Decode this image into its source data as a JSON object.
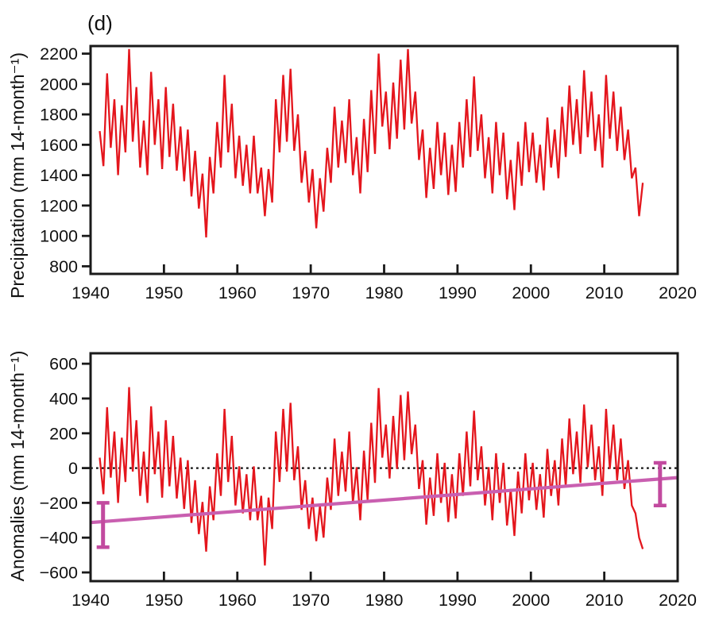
{
  "figure": {
    "panel_label": "(d)",
    "background_color": "#ffffff",
    "frame_color": "#1a1a1a",
    "text_color": "#111111"
  },
  "chart_data": [
    {
      "type": "line",
      "title": "",
      "xlabel": "",
      "ylabel": "Precipitation (mm 14-month⁻¹)",
      "xlim": [
        1940,
        2020
      ],
      "ylim": [
        750,
        2250
      ],
      "xticks": [
        1940,
        1950,
        1960,
        1970,
        1980,
        1990,
        2000,
        2010,
        2020
      ],
      "yticks": [
        800,
        1000,
        1200,
        1400,
        1600,
        1800,
        2000,
        2200
      ],
      "grid": false,
      "legend": "none",
      "series": [
        {
          "name": "precipitation",
          "color": "#e4161d",
          "x_start": 1941.25,
          "x_step": 0.5,
          "values": [
            1690,
            1460,
            2070,
            1580,
            1900,
            1400,
            1860,
            1550,
            2230,
            1620,
            1980,
            1450,
            1760,
            1400,
            2080,
            1600,
            1900,
            1440,
            1980,
            1520,
            1870,
            1430,
            1720,
            1360,
            1700,
            1260,
            1560,
            1180,
            1410,
            990,
            1520,
            1280,
            1750,
            1450,
            2060,
            1550,
            1870,
            1380,
            1660,
            1330,
            1600,
            1280,
            1660,
            1280,
            1450,
            1130,
            1440,
            1220,
            1900,
            1550,
            2060,
            1620,
            2100,
            1560,
            1800,
            1350,
            1560,
            1220,
            1440,
            1050,
            1380,
            1160,
            1580,
            1350,
            1850,
            1450,
            1760,
            1480,
            1900,
            1400,
            1650,
            1280,
            1770,
            1420,
            1960,
            1540,
            2200,
            1720,
            1950,
            1570,
            2010,
            1640,
            2160,
            1700,
            2230,
            1740,
            1950,
            1500,
            1700,
            1250,
            1580,
            1310,
            1750,
            1400,
            1680,
            1270,
            1600,
            1290,
            1750,
            1450,
            1900,
            1520,
            2050,
            1560,
            1800,
            1380,
            1650,
            1280,
            1750,
            1400,
            1680,
            1240,
            1500,
            1170,
            1620,
            1330,
            1750,
            1420,
            1680,
            1350,
            1600,
            1300,
            1780,
            1450,
            1700,
            1380,
            1850,
            1520,
            1990,
            1600,
            1900,
            1540,
            2090,
            1650,
            1950,
            1560,
            1800,
            1450,
            2060,
            1640,
            1950,
            1560,
            1850,
            1500,
            1700,
            1380,
            1450,
            1130,
            1350
          ]
        }
      ]
    },
    {
      "type": "line",
      "title": "",
      "xlabel": "",
      "ylabel": "Anomalies (mm 14-month⁻¹)",
      "xlim": [
        1940,
        2020
      ],
      "ylim": [
        -650,
        660
      ],
      "xticks": [
        1940,
        1950,
        1960,
        1970,
        1980,
        1990,
        2000,
        2010,
        2020
      ],
      "yticks": [
        -600,
        -400,
        -200,
        0,
        200,
        400,
        600
      ],
      "grid": false,
      "legend": "none",
      "zero_line": {
        "y": 0,
        "style": "dotted",
        "color": "#111111"
      },
      "trend_line": {
        "color": "#c95fb0",
        "x1": 1940,
        "y1": -313,
        "x2": 2020,
        "y2": -55
      },
      "error_bars": [
        {
          "x": 1941.7,
          "low": -455,
          "high": -200,
          "color": "#c24a9f"
        },
        {
          "x": 2017.6,
          "low": -215,
          "high": 30,
          "color": "#c24a9f"
        }
      ],
      "series": [
        {
          "name": "anomalies",
          "color": "#e4161d",
          "x_start": 1941.25,
          "x_step": 0.5,
          "values": [
            60,
            -150,
            350,
            -55,
            210,
            -200,
            175,
            -80,
            465,
            -20,
            275,
            -160,
            95,
            -200,
            355,
            -35,
            210,
            -170,
            275,
            -105,
            185,
            -175,
            60,
            -235,
            45,
            -315,
            -70,
            -380,
            -195,
            -480,
            -105,
            -300,
            85,
            -160,
            340,
            -80,
            185,
            -215,
            10,
            -260,
            -35,
            -300,
            10,
            -300,
            -160,
            -560,
            -170,
            -350,
            210,
            -80,
            340,
            -20,
            375,
            -70,
            125,
            -240,
            -70,
            -350,
            -170,
            -420,
            -215,
            -400,
            -55,
            -240,
            170,
            -160,
            95,
            -135,
            210,
            -200,
            5,
            -300,
            100,
            -185,
            260,
            -85,
            460,
            60,
            250,
            -60,
            300,
            -5,
            420,
            45,
            440,
            80,
            250,
            -120,
            45,
            -325,
            -55,
            -275,
            85,
            -200,
            30,
            -310,
            -35,
            -290,
            85,
            -160,
            210,
            -105,
            330,
            -70,
            125,
            -215,
            5,
            -300,
            85,
            -200,
            30,
            -330,
            -120,
            -390,
            -20,
            -260,
            85,
            -185,
            30,
            -240,
            -35,
            -285,
            110,
            -160,
            45,
            -215,
            170,
            -105,
            285,
            -35,
            210,
            -85,
            365,
            5,
            250,
            -70,
            125,
            -160,
            340,
            -5,
            250,
            -70,
            170,
            -120,
            45,
            -215,
            -260,
            -400,
            -465
          ]
        }
      ]
    }
  ]
}
